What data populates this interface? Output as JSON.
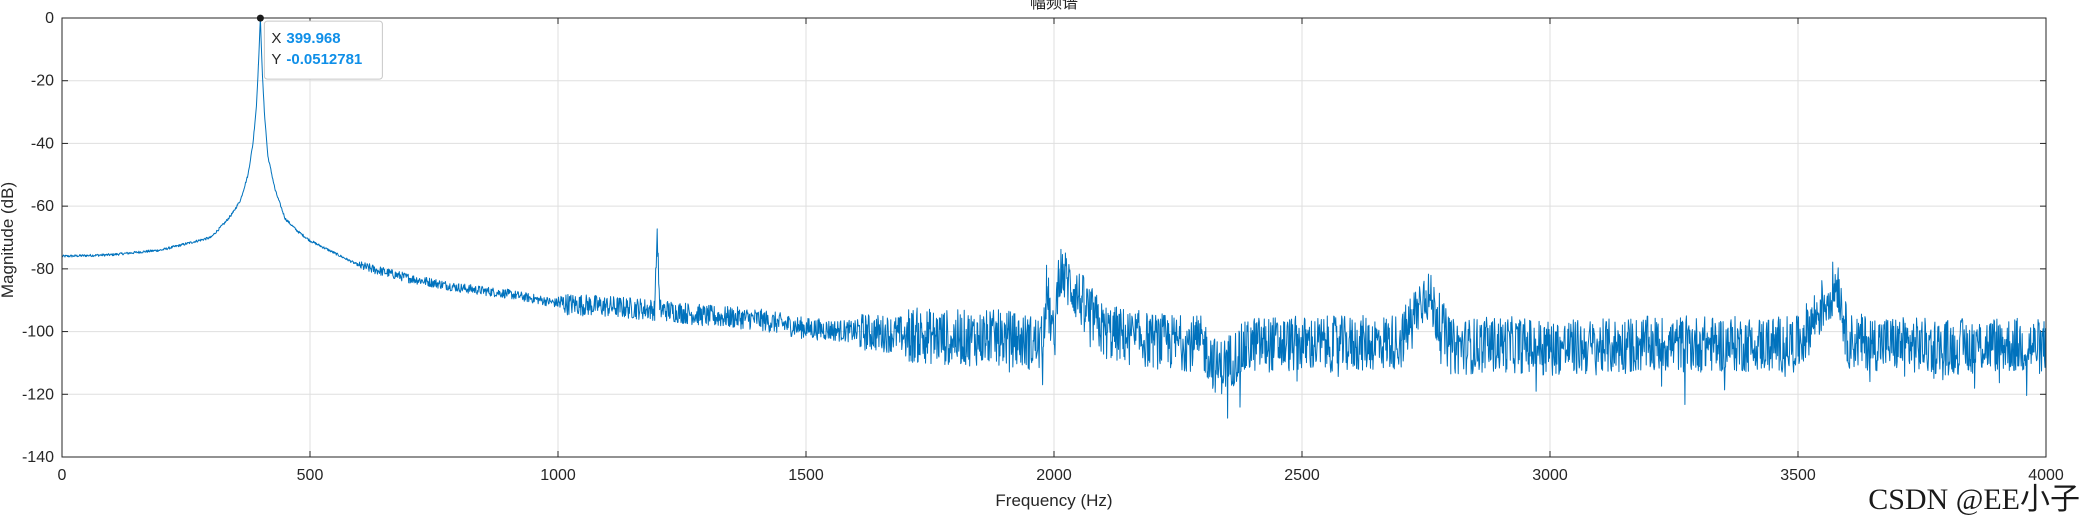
{
  "chart_data": {
    "type": "line",
    "title": "幅频谱",
    "xlabel": "Frequency (Hz)",
    "ylabel": "Magnitude (dB)",
    "xlim": [
      0,
      4000
    ],
    "ylim": [
      -140,
      0
    ],
    "xticks": [
      0,
      500,
      1000,
      1500,
      2000,
      2500,
      3000,
      3500,
      4000
    ],
    "yticks": [
      0,
      -20,
      -40,
      -60,
      -80,
      -100,
      -120,
      -140
    ],
    "grid": true,
    "line_color": "#0072bd",
    "series": [
      {
        "x": [
          0,
          100,
          200,
          250,
          300,
          330,
          345,
          360,
          375,
          385,
          392,
          396,
          399.968,
          404,
          408,
          415,
          430,
          450,
          475,
          500,
          550,
          600,
          700,
          800,
          900,
          1000,
          1100,
          1195,
          1200,
          1205,
          1300,
          1400,
          1500,
          1600,
          1700,
          1800,
          1900,
          1975,
          1985,
          2000,
          2010,
          2100,
          2200,
          2300,
          2330,
          2400,
          2500,
          2600,
          2700,
          2750,
          2800,
          2900,
          3000,
          3100,
          3200,
          3300,
          3400,
          3500,
          3580,
          3600,
          3700,
          3800,
          3900,
          4000
        ],
        "y": [
          -76,
          -75.5,
          -74,
          -72,
          -70,
          -65,
          -62,
          -58,
          -50,
          -40,
          -28,
          -15,
          -0.0512781,
          -18,
          -30,
          -44,
          -55,
          -64,
          -68,
          -71,
          -75,
          -79,
          -83,
          -86,
          -88,
          -91,
          -92,
          -93,
          -68,
          -93,
          -95,
          -96,
          -99,
          -100,
          -101,
          -102,
          -102,
          -104,
          -87,
          -104,
          -80,
          -100,
          -103,
          -104,
          -112,
          -104,
          -104,
          -104,
          -103,
          -87,
          -105,
          -104,
          -105,
          -105,
          -104,
          -104,
          -104,
          -104,
          -84,
          -103,
          -104,
          -105,
          -104,
          -105
        ]
      }
    ],
    "datatip": {
      "x_label": "X",
      "x_value": "399.968",
      "y_label": "Y",
      "y_value": "-0.0512781"
    }
  },
  "watermark": "CSDN @EE小子"
}
